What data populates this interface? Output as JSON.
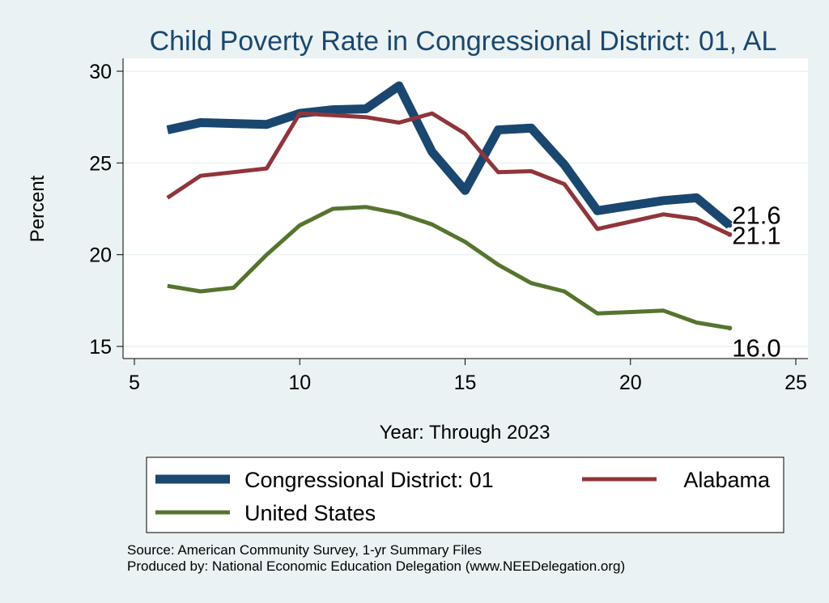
{
  "chart_data": {
    "type": "line",
    "title": "Child Poverty Rate in Congressional District:  01, AL",
    "xlabel": "Year: Through 2023",
    "ylabel": "Percent",
    "xlim": [
      5,
      25
    ],
    "ylim": [
      15,
      30
    ],
    "xticks": [
      5,
      10,
      15,
      20,
      25
    ],
    "yticks": [
      15,
      20,
      25,
      30
    ],
    "grid": "horizontal",
    "legend_position": "bottom",
    "series": [
      {
        "name": "Congressional District:  01",
        "color": "#1a476f",
        "x": [
          6,
          7,
          8,
          9,
          10,
          11,
          12,
          13,
          14,
          15,
          16,
          17,
          18,
          19,
          21,
          22,
          23
        ],
        "y": [
          26.8,
          27.2,
          27.15,
          27.1,
          27.7,
          27.9,
          27.95,
          29.2,
          25.6,
          23.5,
          26.8,
          26.9,
          24.9,
          22.4,
          22.95,
          23.1,
          21.6
        ],
        "end_label": "21.6"
      },
      {
        "name": "Alabama",
        "color": "#90353b",
        "x": [
          6,
          7,
          8,
          9,
          10,
          11,
          12,
          13,
          14,
          15,
          16,
          17,
          18,
          19,
          21,
          22,
          23
        ],
        "y": [
          23.1,
          24.3,
          24.5,
          24.7,
          27.7,
          27.6,
          27.5,
          27.2,
          27.7,
          26.6,
          24.5,
          24.55,
          23.85,
          21.4,
          22.2,
          21.95,
          21.1
        ],
        "end_label": "21.1"
      },
      {
        "name": "United States",
        "color": "#55752f",
        "x": [
          6,
          7,
          8,
          9,
          10,
          11,
          12,
          13,
          14,
          15,
          16,
          17,
          18,
          19,
          21,
          22,
          23
        ],
        "y": [
          18.3,
          18.0,
          18.2,
          20.0,
          21.6,
          22.5,
          22.6,
          22.25,
          21.65,
          20.7,
          19.45,
          18.45,
          18.0,
          16.8,
          16.95,
          16.3,
          16.0
        ],
        "end_label": "16.0"
      }
    ]
  },
  "source": {
    "line1": "Source: American Community Survey, 1-yr Summary Files",
    "line2": "Produced by: National Economic Education Delegation (www.NEEDelegation.org)"
  }
}
